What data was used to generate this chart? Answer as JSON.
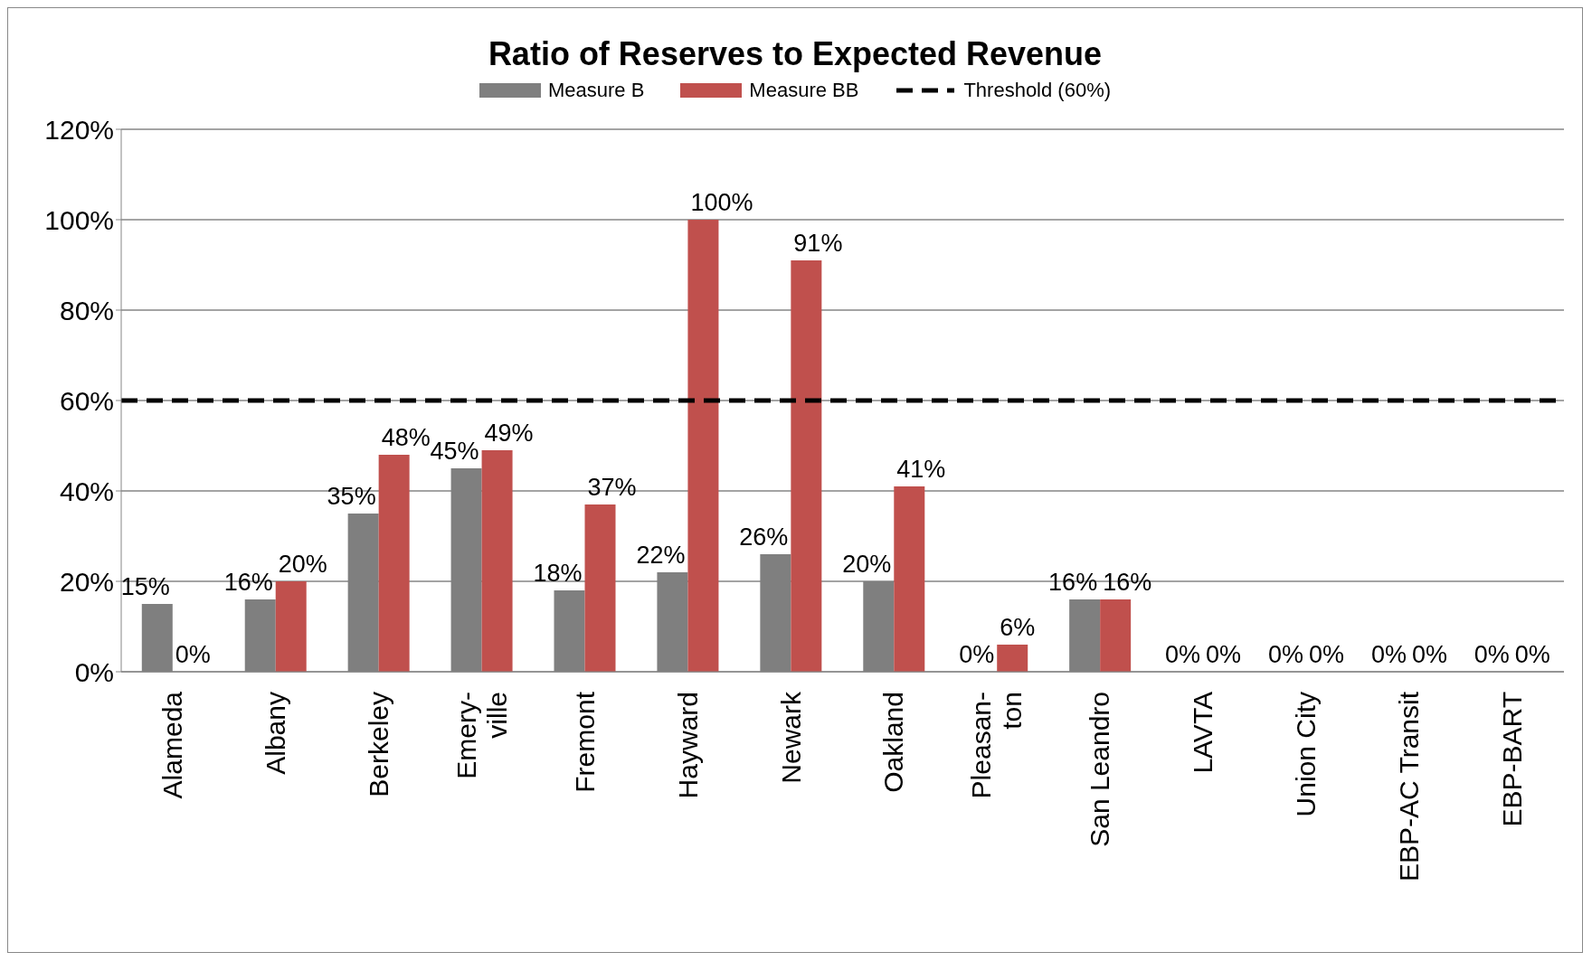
{
  "chart_data": {
    "type": "bar",
    "title": "Ratio of Reserves to Expected Revenue",
    "categories": [
      "Alameda",
      "Albany",
      "Berkeley",
      "Emery-\nville",
      "Fremont",
      "Hayward",
      "Newark",
      "Oakland",
      "Pleasan-\nton",
      "San Leandro",
      "LAVTA",
      "Union City",
      "EBP-AC Transit",
      "EBP-BART"
    ],
    "series": [
      {
        "name": "Measure B",
        "color": "#7f7f7f",
        "values": [
          15,
          16,
          35,
          45,
          18,
          22,
          26,
          20,
          0,
          16,
          0,
          0,
          0,
          0
        ],
        "value_labels": [
          "15%",
          "16%",
          "35%",
          "45%",
          "18%",
          "22%",
          "26%",
          "20%",
          "0%",
          "16%",
          "0%",
          "0%",
          "0%",
          "0%"
        ]
      },
      {
        "name": "Measure BB",
        "color": "#c0504d",
        "values": [
          0,
          20,
          48,
          49,
          37,
          100,
          91,
          41,
          6,
          16,
          0,
          0,
          0,
          0
        ],
        "value_labels": [
          "0%",
          "20%",
          "48%",
          "49%",
          "37%",
          "100%",
          "91%",
          "41%",
          "6%",
          "16%",
          "0%",
          "0%",
          "0%",
          "0%"
        ]
      }
    ],
    "ylim": [
      0,
      120
    ],
    "yticks": [
      {
        "value": 0,
        "label": "0%"
      },
      {
        "value": 20,
        "label": "20%"
      },
      {
        "value": 40,
        "label": "40%"
      },
      {
        "value": 60,
        "label": "60%"
      },
      {
        "value": 80,
        "label": "80%"
      },
      {
        "value": 100,
        "label": "100%"
      },
      {
        "value": 120,
        "label": "120%"
      }
    ],
    "ref_lines": [
      {
        "axis": "y",
        "value": 60,
        "label": "Threshold (60%)",
        "color": "#000000",
        "line_style": "dashed"
      }
    ],
    "grid": "y",
    "legend": "top"
  }
}
